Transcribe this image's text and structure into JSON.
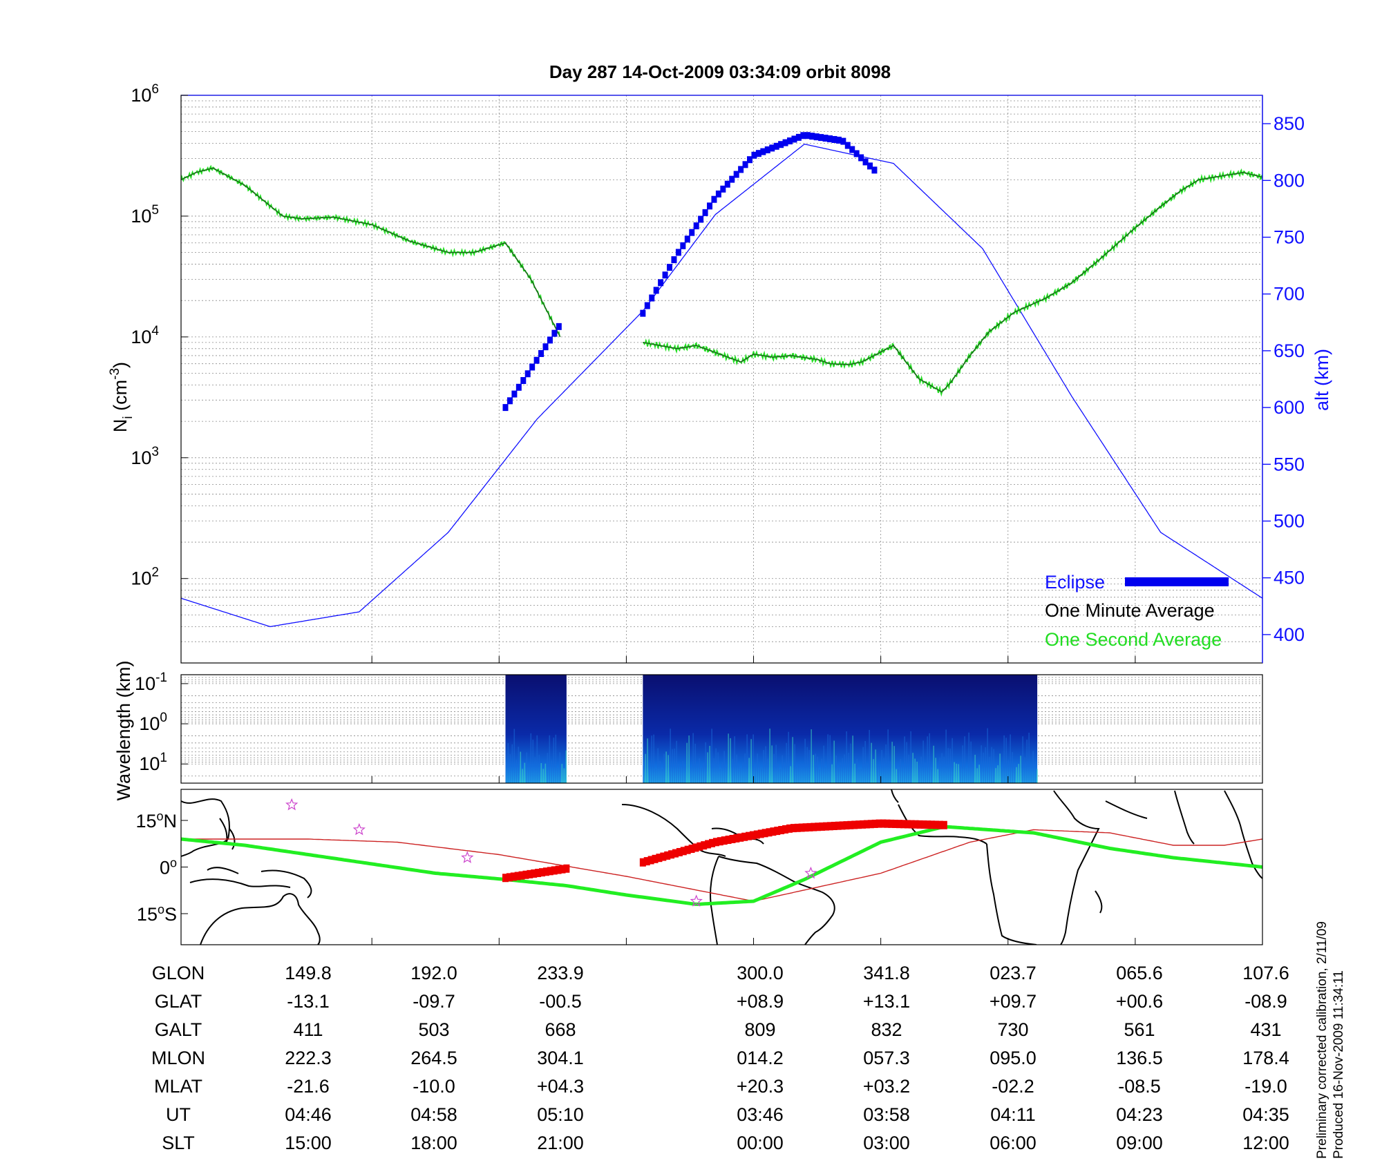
{
  "title": "Day 287  14-Oct-2009 03:34:09   orbit 8098",
  "colors": {
    "density": "#1a5e1a",
    "density_second": "#22dd22",
    "altitude": "#1010ff",
    "eclipse": "#0000ee",
    "map_eclipse": "#ee0000",
    "ground_track": "#22ee22",
    "map_track": "#cc2222",
    "star": "#cc44cc"
  },
  "footer": [
    "Preliminary corrected calibration, 2/11/09",
    "Produced 16-Nov-2009 11:34:11"
  ],
  "chart_data": [
    {
      "type": "line",
      "id": "density-altitude",
      "title": "Day 287  14-Oct-2009 03:34:09   orbit 8098",
      "ylabel": "N_i (cm^-3)",
      "ylabel_base": "N",
      "ylabel_sub": "i",
      "ylabel_unit": "(cm",
      "ylabel_sup": "-3",
      "ylabel_close": ")",
      "y_scale": "log",
      "ylim": [
        20,
        1000000
      ],
      "y_ticks": [
        {
          "base": "10",
          "exp": "2",
          "value": 100
        },
        {
          "base": "10",
          "exp": "3",
          "value": 1000
        },
        {
          "base": "10",
          "exp": "4",
          "value": 10000
        },
        {
          "base": "10",
          "exp": "5",
          "value": 100000
        },
        {
          "base": "10",
          "exp": "6",
          "value": 1000000
        }
      ],
      "y2label": "alt (km)",
      "y2lim": [
        375,
        875
      ],
      "y2_ticks": [
        "400",
        "450",
        "500",
        "550",
        "600",
        "650",
        "700",
        "750",
        "800",
        "850"
      ],
      "xlim": [
        0,
        8.5
      ],
      "grid": true,
      "legend_position": "bottom-right",
      "legend": [
        "Eclipse",
        "One Minute Average",
        "One Second Average"
      ],
      "series": [
        {
          "name": "One Minute Average",
          "x": [
            0,
            0.12,
            0.25,
            0.5,
            0.8,
            0.95,
            1.2,
            1.5,
            1.8,
            2.1,
            2.3,
            2.55,
            2.75,
            2.98
          ],
          "values": [
            200000,
            230000,
            250000,
            180000,
            100000,
            95000,
            98000,
            85000,
            62000,
            50000,
            50000,
            60000,
            30000,
            10000
          ]
        },
        {
          "name": "One Minute Average",
          "x": [
            3.63,
            3.9,
            4.05,
            4.4,
            4.5,
            4.65,
            4.8,
            5.0,
            5.1,
            5.25,
            5.35,
            5.6,
            5.8,
            5.98,
            6.05,
            6.2,
            6.35,
            6.55,
            6.8,
            7.0,
            7.2,
            7.5,
            7.7,
            7.85,
            8.0,
            8.35,
            8.5
          ],
          "values": [
            9000,
            8000,
            8500,
            6200,
            7200,
            6800,
            7000,
            6500,
            6000,
            5900,
            6200,
            8500,
            4500,
            3500,
            4200,
            7000,
            11000,
            16000,
            21000,
            28000,
            42000,
            80000,
            120000,
            160000,
            200000,
            230000,
            210000
          ]
        },
        {
          "name": "alt (km)",
          "role": "altitude",
          "x": [
            0,
            0.7,
            1.4,
            2.1,
            2.8,
            3.63,
            4.2,
            4.9,
            5.6,
            6.3,
            7.0,
            7.7,
            8.5
          ],
          "values": [
            432,
            407,
            420,
            490,
            590,
            685,
            770,
            832,
            815,
            740,
            610,
            490,
            432
          ]
        },
        {
          "name": "Eclipse",
          "x": [
            2.55,
            2.98,
            3.63,
            3.9,
            4.2,
            4.5,
            4.9,
            5.2,
            5.48
          ],
          "values": [
            600,
            673,
            683,
            735,
            785,
            822,
            840,
            835,
            806
          ]
        }
      ]
    },
    {
      "type": "heatmap",
      "id": "wavelength-spectrogram",
      "ylabel": "Wavelength (km)",
      "y_scale": "log",
      "ylim": [
        30,
        0.06
      ],
      "y_ticks": [
        {
          "base": "10",
          "exp": "-1",
          "value": 0.1
        },
        {
          "base": "10",
          "exp": "0",
          "value": 1
        },
        {
          "base": "10",
          "exp": "1",
          "value": 10
        }
      ],
      "xlim": [
        0,
        8.5
      ],
      "data_blocks": [
        {
          "x": [
            2.55,
            3.03
          ]
        },
        {
          "x": [
            3.63,
            6.73
          ]
        }
      ]
    },
    {
      "type": "line",
      "id": "ground-track-map",
      "y_ticks": [
        {
          "value": 15,
          "label": "15",
          "unit": "o",
          "hemi": "N"
        },
        {
          "value": 0,
          "label": "0",
          "unit": "o",
          "hemi": ""
        },
        {
          "value": -15,
          "label": "15",
          "unit": "o",
          "hemi": "S"
        }
      ],
      "ylim": [
        -25,
        25
      ],
      "xlim": [
        0,
        8.5
      ],
      "series": [
        {
          "name": "satellite track",
          "x": [
            0,
            0.5,
            1.0,
            1.5,
            2.0,
            2.55,
            3.03,
            3.5,
            4.05,
            4.5,
            4.9,
            5.5,
            6.0,
            6.7,
            7.3,
            7.8,
            8.5
          ],
          "values": [
            9,
            7,
            4,
            1,
            -2,
            -4,
            -6,
            -9,
            -12,
            -11,
            -4,
            8,
            13,
            11,
            6,
            3,
            0
          ]
        },
        {
          "name": "Eclipse",
          "x": [
            2.55,
            3.03,
            3.63,
            4.2,
            4.8,
            5.5,
            6.0
          ],
          "values": [
            -3.5,
            -0.5,
            1.5,
            8,
            12.5,
            14,
            13.5
          ]
        },
        {
          "name": "magnetic equator",
          "x": [
            0,
            1.0,
            1.7,
            2.5,
            3.5,
            4.5,
            5.5,
            6.2,
            6.7,
            7.3,
            7.8,
            8.2,
            8.5
          ],
          "values": [
            9,
            9,
            8,
            4,
            -3,
            -11,
            -2,
            8,
            12,
            11,
            7,
            7,
            9
          ]
        }
      ],
      "stars": {
        "x": [
          0.87,
          1.4,
          2.25,
          4.05,
          4.95
        ],
        "y": [
          20,
          12,
          3,
          -11,
          -2
        ]
      }
    }
  ],
  "table": {
    "row_labels": [
      "GLON",
      "GLAT",
      "GALT",
      "MLON",
      "MLAT",
      "UT",
      "SLT"
    ],
    "columns": [
      [
        "149.8",
        "-13.1",
        "411",
        "222.3",
        "-21.6",
        "04:46",
        "15:00"
      ],
      [
        "192.0",
        "-09.7",
        "503",
        "264.5",
        "-10.0",
        "04:58",
        "18:00"
      ],
      [
        "233.9",
        "-00.5",
        "668",
        "304.1",
        "+04.3",
        "05:10",
        "21:00"
      ],
      [
        "300.0",
        "+08.9",
        "809",
        "014.2",
        "+20.3",
        "03:46",
        "00:00"
      ],
      [
        "341.8",
        "+13.1",
        "832",
        "057.3",
        "+03.2",
        "03:58",
        "03:00"
      ],
      [
        "023.7",
        "+09.7",
        "730",
        "095.0",
        "-02.2",
        "04:11",
        "06:00"
      ],
      [
        "065.6",
        "+00.6",
        "561",
        "136.5",
        "-08.5",
        "04:23",
        "09:00"
      ],
      [
        "107.6",
        "-08.9",
        "431",
        "178.4",
        "-19.0",
        "04:35",
        "12:00"
      ]
    ]
  }
}
